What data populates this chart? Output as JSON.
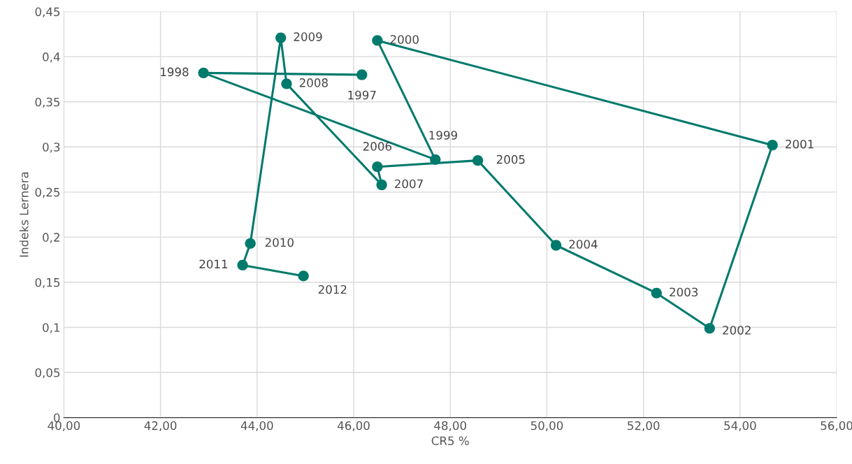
{
  "chart_data": {
    "type": "line",
    "xlabel": "CR5 %",
    "ylabel": "Indeks Lernera",
    "x": [
      46.17,
      42.89,
      47.69,
      46.49,
      54.67,
      53.37,
      52.27,
      50.19,
      48.57,
      46.49,
      46.58,
      44.61,
      44.49,
      43.86,
      43.7,
      44.96
    ],
    "series": [
      {
        "color": "#007a6c",
        "values": [
          0.38,
          0.382,
          0.286,
          0.418,
          0.302,
          0.099,
          0.138,
          0.191,
          0.285,
          0.278,
          0.258,
          0.37,
          0.421,
          0.193,
          0.169,
          0.157
        ]
      }
    ],
    "annotations": [
      {
        "text": "1997",
        "x": 46.17,
        "y": 0.38
      },
      {
        "text": "1998",
        "x": 42.89,
        "y": 0.382
      },
      {
        "text": "1999",
        "x": 47.69,
        "y": 0.286
      },
      {
        "text": "2000",
        "x": 46.49,
        "y": 0.418
      },
      {
        "text": "2001",
        "x": 54.67,
        "y": 0.302
      },
      {
        "text": "2002",
        "x": 53.37,
        "y": 0.099
      },
      {
        "text": "2003",
        "x": 52.27,
        "y": 0.138
      },
      {
        "text": "2004",
        "x": 50.19,
        "y": 0.191
      },
      {
        "text": "2005",
        "x": 48.57,
        "y": 0.285
      },
      {
        "text": "2006",
        "x": 46.49,
        "y": 0.278
      },
      {
        "text": "2007",
        "x": 46.58,
        "y": 0.258
      },
      {
        "text": "2008",
        "x": 44.61,
        "y": 0.37
      },
      {
        "text": "2009",
        "x": 44.49,
        "y": 0.421
      },
      {
        "text": "2010",
        "x": 43.86,
        "y": 0.193
      },
      {
        "text": "2011",
        "x": 43.7,
        "y": 0.169
      },
      {
        "text": "2012",
        "x": 44.96,
        "y": 0.157
      }
    ],
    "xlim": [
      40,
      56
    ],
    "xticks": [
      {
        "value": 40,
        "label": "40,00"
      },
      {
        "value": 42,
        "label": "42,00"
      },
      {
        "value": 44,
        "label": "44,00"
      },
      {
        "value": 46,
        "label": "46,00"
      },
      {
        "value": 48,
        "label": "48,00"
      },
      {
        "value": 50,
        "label": "50,00"
      },
      {
        "value": 52,
        "label": "52,00"
      },
      {
        "value": 54,
        "label": "54,00"
      },
      {
        "value": 56,
        "label": "56,00"
      }
    ],
    "ylim": [
      0,
      0.45
    ],
    "yticks": [
      0,
      {
        "value": 0.05,
        "label": "0,05"
      },
      {
        "value": 0.1,
        "label": "0,1"
      },
      {
        "value": 0.15,
        "label": "0,15"
      },
      {
        "value": 0.2,
        "label": "0,2"
      },
      {
        "value": 0.25,
        "label": "0,25"
      },
      {
        "value": 0.3,
        "label": "0,3"
      },
      {
        "value": 0.35,
        "label": "0,35"
      },
      {
        "value": 0.4,
        "label": "0,4"
      },
      {
        "value": 0.45,
        "label": "0,45"
      }
    ],
    "grid": true,
    "marker": "circle",
    "line_style": "solid"
  }
}
